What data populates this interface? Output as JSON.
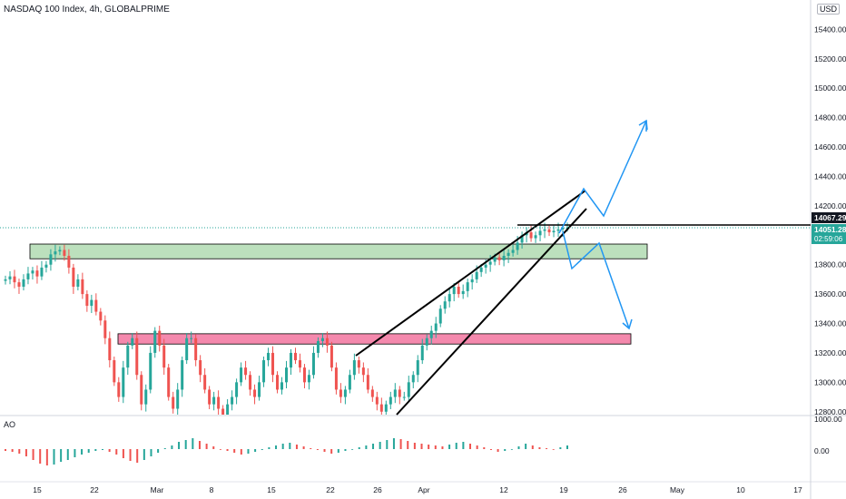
{
  "header": {
    "title": "NASDAQ 100 Index, 4h, GLOBALPRIME",
    "currency_badge": "USD"
  },
  "indicator": {
    "name": "AO"
  },
  "chart_data": {
    "type": "candlestick",
    "price_axis": {
      "ticks": [
        "15400.00",
        "15200.00",
        "15000.00",
        "14800.00",
        "14600.00",
        "14400.00",
        "14200.00",
        "13800.00",
        "13600.00",
        "13400.00",
        "13200.00",
        "13000.00",
        "12800.00"
      ],
      "ylim": [
        12780,
        15600
      ]
    },
    "ao_axis": {
      "ticks": [
        "1000.00",
        "0.00"
      ]
    },
    "time_axis": {
      "labels": [
        "15",
        "22",
        "Mar",
        "8",
        "15",
        "22",
        "26",
        "Apr",
        "12",
        "19",
        "26",
        "May",
        "10",
        "17"
      ]
    },
    "last_price": {
      "value": "14067.29",
      "color": "#131722"
    },
    "current_price": {
      "value": "14051.28",
      "countdown": "02:59:06",
      "color": "#26a69a"
    },
    "candle_colors": {
      "up": "#26a69a",
      "down": "#ef5350"
    },
    "closes": [
      13700,
      13720,
      13680,
      13650,
      13700,
      13740,
      13760,
      13720,
      13780,
      13800,
      13870,
      13890,
      13900,
      13860,
      13780,
      13650,
      13700,
      13600,
      13520,
      13560,
      13480,
      13420,
      13300,
      13150,
      13000,
      12900,
      13100,
      13250,
      13300,
      13050,
      12850,
      12950,
      13200,
      13350,
      13250,
      13100,
      12900,
      12820,
      12950,
      13150,
      13300,
      13300,
      13150,
      13050,
      12950,
      12850,
      12900,
      12820,
      12780,
      12850,
      12900,
      13000,
      13100,
      13050,
      12950,
      12900,
      13000,
      13150,
      13200,
      13050,
      12950,
      13000,
      13100,
      13200,
      13150,
      13100,
      13000,
      13050,
      13200,
      13280,
      13300,
      13250,
      13100,
      12950,
      12900,
      12950,
      13050,
      13150,
      13100,
      13050,
      12950,
      12900,
      12850,
      12800,
      12850,
      12900,
      12950,
      12900,
      12900,
      13000,
      13050,
      13150,
      13250,
      13300,
      13350,
      13400,
      13500,
      13550,
      13600,
      13650,
      13600,
      13620,
      13680,
      13700,
      13750,
      13780,
      13800,
      13820,
      13850,
      13830,
      13860,
      13880,
      13900,
      13950,
      14000,
      14020,
      13980,
      14000,
      14030,
      14040,
      14020,
      14030,
      14040,
      14050,
      14051.28
    ],
    "ao_values": [
      -20,
      -30,
      -50,
      -80,
      -120,
      -160,
      -180,
      -170,
      -140,
      -120,
      -90,
      -60,
      -40,
      -20,
      -10,
      -30,
      -60,
      -100,
      -130,
      -150,
      -120,
      -80,
      -40,
      10,
      40,
      80,
      100,
      120,
      90,
      60,
      30,
      0,
      -20,
      -40,
      -60,
      -50,
      -30,
      -10,
      20,
      40,
      60,
      70,
      50,
      30,
      10,
      -10,
      -30,
      -50,
      -40,
      -20,
      0,
      20,
      40,
      60,
      80,
      100,
      120,
      110,
      90,
      70,
      60,
      50,
      40,
      30,
      50,
      70,
      80,
      60,
      40,
      20,
      -10,
      -30,
      -20,
      0,
      30,
      60,
      40,
      20,
      10,
      0,
      20,
      40
    ],
    "zones": [
      {
        "label": "",
        "from": 13840,
        "to": 13940,
        "color": "#a5d6a7"
      },
      {
        "label": "",
        "from": 13260,
        "to": 13330,
        "color": "#f06292"
      }
    ],
    "drawings": [
      {
        "kind": "rising-wedge-upper"
      },
      {
        "kind": "rising-wedge-lower"
      },
      {
        "kind": "horizontal-line",
        "price": 14067.29
      },
      {
        "kind": "projection-up"
      },
      {
        "kind": "projection-down"
      }
    ]
  }
}
